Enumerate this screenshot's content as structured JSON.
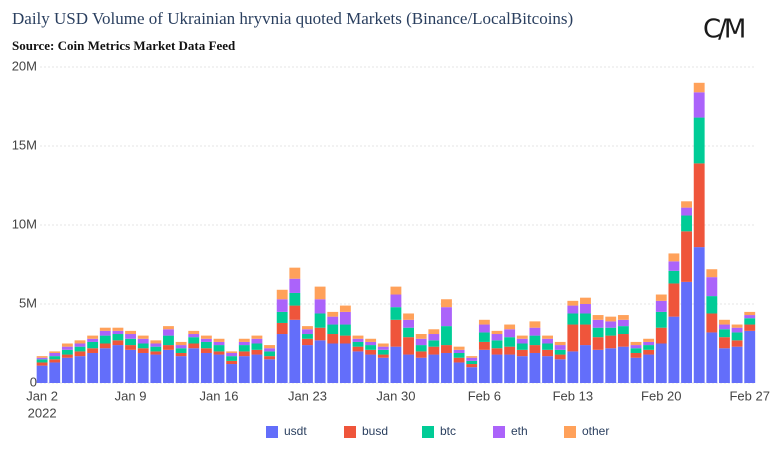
{
  "chart_data": {
    "type": "stacked_bar",
    "title": "Daily USD Volume of Ukrainian hryvnia quoted Markets (Binance/LocalBitcoins)",
    "subtitle": "Source: Coin Metrics Market Data Feed",
    "logo": "C/M",
    "x": [
      "2022-01-02",
      "2022-01-03",
      "2022-01-04",
      "2022-01-05",
      "2022-01-06",
      "2022-01-07",
      "2022-01-08",
      "2022-01-09",
      "2022-01-10",
      "2022-01-11",
      "2022-01-12",
      "2022-01-13",
      "2022-01-14",
      "2022-01-15",
      "2022-01-16",
      "2022-01-17",
      "2022-01-18",
      "2022-01-19",
      "2022-01-20",
      "2022-01-21",
      "2022-01-22",
      "2022-01-23",
      "2022-01-24",
      "2022-01-25",
      "2022-01-26",
      "2022-01-27",
      "2022-01-28",
      "2022-01-29",
      "2022-01-30",
      "2022-01-31",
      "2022-02-01",
      "2022-02-02",
      "2022-02-03",
      "2022-02-04",
      "2022-02-05",
      "2022-02-06",
      "2022-02-07",
      "2022-02-08",
      "2022-02-09",
      "2022-02-10",
      "2022-02-11",
      "2022-02-12",
      "2022-02-13",
      "2022-02-14",
      "2022-02-15",
      "2022-02-16",
      "2022-02-17",
      "2022-02-18",
      "2022-02-19",
      "2022-02-20",
      "2022-02-21",
      "2022-02-22",
      "2022-02-23",
      "2022-02-24",
      "2022-02-25",
      "2022-02-26",
      "2022-02-27"
    ],
    "xlim": [
      "2022-01-01T20:00:00Z",
      "2022-02-27T10:00:00Z"
    ],
    "xticks": [
      {
        "value": "2022-01-02",
        "label": "Jan 2",
        "sublabel": "2022"
      },
      {
        "value": "2022-01-09",
        "label": "Jan 9"
      },
      {
        "value": "2022-01-16",
        "label": "Jan 16"
      },
      {
        "value": "2022-01-23",
        "label": "Jan 23"
      },
      {
        "value": "2022-01-30",
        "label": "Jan 30"
      },
      {
        "value": "2022-02-06",
        "label": "Feb 6"
      },
      {
        "value": "2022-02-13",
        "label": "Feb 13"
      },
      {
        "value": "2022-02-20",
        "label": "Feb 20"
      },
      {
        "value": "2022-02-27",
        "label": "Feb 27"
      }
    ],
    "ylim": [
      0,
      20000000
    ],
    "yticks": [
      0,
      {
        "value": 5000000,
        "label": "5M"
      },
      {
        "value": 10000000,
        "label": "10M"
      },
      {
        "value": 15000000,
        "label": "15M"
      },
      {
        "value": 20000000,
        "label": "20M"
      }
    ],
    "grid": true,
    "legend": "bottom",
    "series": [
      {
        "name": "usdt",
        "color": "#636efa",
        "values": [
          1100000,
          1300000,
          1600000,
          1700000,
          1900000,
          2200000,
          2400000,
          2100000,
          1900000,
          1800000,
          2100000,
          1700000,
          2200000,
          1900000,
          1800000,
          1200000,
          1700000,
          1800000,
          1500000,
          3100000,
          4000000,
          2400000,
          2700000,
          2500000,
          2500000,
          2000000,
          1800000,
          1600000,
          2300000,
          1800000,
          1600000,
          1800000,
          1900000,
          1300000,
          1000000,
          2100000,
          1800000,
          1800000,
          1700000,
          1900000,
          1700000,
          1500000,
          2000000,
          2400000,
          2100000,
          2200000,
          2300000,
          1600000,
          1800000,
          2500000,
          4200000,
          6400000,
          8600000,
          3200000,
          2200000,
          2300000,
          3300000
        ]
      },
      {
        "name": "busd",
        "color": "#ef553b",
        "values": [
          200000,
          200000,
          200000,
          300000,
          300000,
          300000,
          300000,
          300000,
          300000,
          200000,
          300000,
          200000,
          300000,
          300000,
          200000,
          200000,
          300000,
          300000,
          200000,
          700000,
          900000,
          400000,
          800000,
          600000,
          500000,
          300000,
          300000,
          200000,
          1700000,
          1100000,
          400000,
          500000,
          500000,
          300000,
          200000,
          500000,
          400000,
          500000,
          400000,
          500000,
          400000,
          300000,
          1700000,
          1300000,
          800000,
          800000,
          800000,
          300000,
          300000,
          1000000,
          2100000,
          3200000,
          5300000,
          1200000,
          700000,
          400000,
          400000
        ]
      },
      {
        "name": "btc",
        "color": "#00cc96",
        "values": [
          200000,
          200000,
          300000,
          300000,
          400000,
          500000,
          400000,
          400000,
          300000,
          300000,
          600000,
          300000,
          400000,
          400000,
          400000,
          300000,
          400000,
          400000,
          300000,
          700000,
          800000,
          300000,
          900000,
          600000,
          700000,
          300000,
          300000,
          300000,
          800000,
          600000,
          400000,
          400000,
          1200000,
          300000,
          200000,
          600000,
          500000,
          600000,
          400000,
          600000,
          400000,
          300000,
          700000,
          700000,
          600000,
          500000,
          500000,
          300000,
          300000,
          1000000,
          800000,
          1000000,
          2900000,
          1100000,
          500000,
          500000,
          400000
        ]
      },
      {
        "name": "eth",
        "color": "#ab63fa",
        "values": [
          100000,
          200000,
          200000,
          200000,
          200000,
          300000,
          200000,
          300000,
          300000,
          200000,
          400000,
          200000,
          200000,
          200000,
          200000,
          200000,
          200000,
          300000,
          200000,
          800000,
          900000,
          300000,
          900000,
          500000,
          800000,
          200000,
          200000,
          200000,
          800000,
          500000,
          400000,
          400000,
          1200000,
          200000,
          200000,
          500000,
          400000,
          500000,
          300000,
          500000,
          300000,
          300000,
          500000,
          600000,
          500000,
          400000,
          400000,
          200000,
          200000,
          700000,
          600000,
          500000,
          1600000,
          1200000,
          300000,
          300000,
          200000
        ]
      },
      {
        "name": "other",
        "color": "#ffa15a",
        "values": [
          100000,
          100000,
          200000,
          200000,
          200000,
          200000,
          200000,
          200000,
          200000,
          200000,
          200000,
          200000,
          200000,
          200000,
          200000,
          100000,
          200000,
          200000,
          200000,
          600000,
          700000,
          200000,
          800000,
          300000,
          400000,
          200000,
          200000,
          200000,
          500000,
          400000,
          300000,
          300000,
          500000,
          200000,
          100000,
          300000,
          200000,
          300000,
          200000,
          400000,
          200000,
          200000,
          300000,
          400000,
          300000,
          300000,
          300000,
          200000,
          200000,
          400000,
          500000,
          400000,
          600000,
          500000,
          300000,
          200000,
          200000
        ]
      }
    ]
  }
}
